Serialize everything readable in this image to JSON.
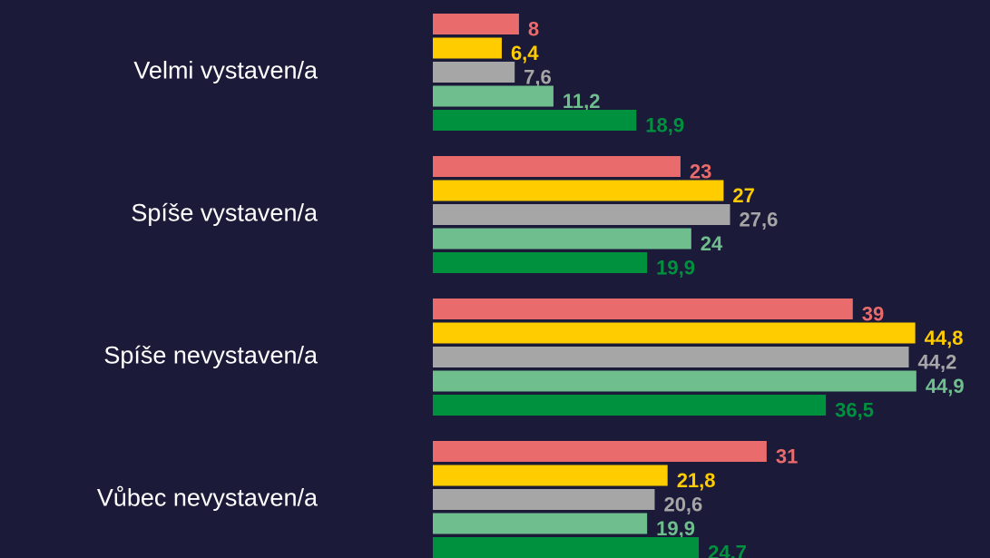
{
  "chart_data": {
    "type": "hbar",
    "categories": [
      "Velmi vystaven/a",
      "Spíše vystaven/a",
      "Spíše nevystaven/a",
      "Vůbec nevystaven/a"
    ],
    "series": [
      {
        "color": "#e96b6b",
        "values": [
          8,
          23,
          39,
          31
        ]
      },
      {
        "color": "#ffcc00",
        "values": [
          6.4,
          27,
          44.8,
          21.8
        ],
        "value_labels": [
          "6,4",
          "27",
          "44,8",
          "21,8"
        ]
      },
      {
        "color": "#a6a6a6",
        "values": [
          7.6,
          27.6,
          44.2,
          20.6
        ],
        "value_labels": [
          "7,6",
          "27,6",
          "44,2",
          "20,6"
        ]
      },
      {
        "color": "#6fbf8e",
        "values": [
          11.2,
          24,
          44.9,
          19.9
        ],
        "value_labels": [
          "11,2",
          "24",
          "44,9",
          "19,9"
        ]
      },
      {
        "color": "#00913f",
        "values": [
          18.9,
          19.9,
          36.5,
          24.7
        ],
        "value_labels": [
          "18,9",
          "19,9",
          "36,5",
          "24,7"
        ]
      }
    ],
    "xlim": [
      0,
      45
    ]
  }
}
